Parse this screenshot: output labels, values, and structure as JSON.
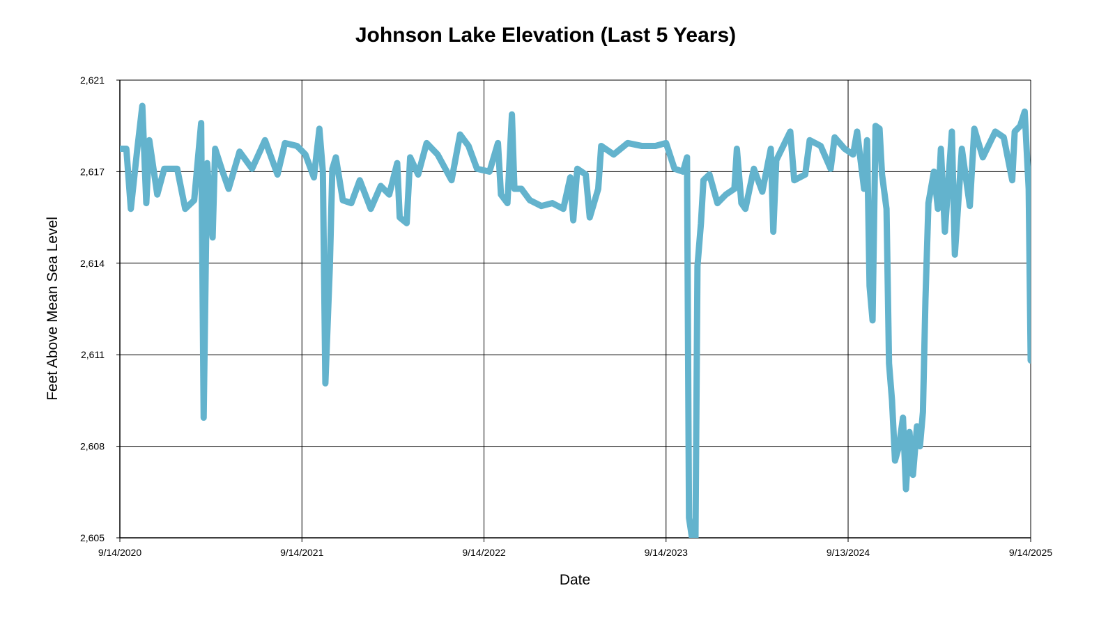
{
  "chart_data": {
    "type": "line",
    "title": "Johnson Lake Elevation (Last 5 Years)",
    "x_label": "Date",
    "y_label": "Feet Above Mean Sea Level",
    "grid": true,
    "xlim": [
      "2020-09-14",
      "2025-09-14"
    ],
    "xticks": [
      {
        "value": "2020-09-14",
        "label": "9/14/2020"
      },
      {
        "value": "2021-09-14",
        "label": "9/14/2021"
      },
      {
        "value": "2022-09-14",
        "label": "9/14/2022"
      },
      {
        "value": "2023-09-14",
        "label": "9/14/2023"
      },
      {
        "value": "2024-09-13",
        "label": "9/13/2024"
      },
      {
        "value": "2025-09-14",
        "label": "9/14/2025"
      }
    ],
    "ylim": [
      2604.6,
      2620.6
    ],
    "yticks": [
      {
        "value": 2604.6,
        "label": "2,605"
      },
      {
        "value": 2607.8,
        "label": "2,608"
      },
      {
        "value": 2611,
        "label": "2,611"
      },
      {
        "value": 2614.2,
        "label": "2,614"
      },
      {
        "value": 2617.4,
        "label": "2,617"
      },
      {
        "value": 2620.6,
        "label": "2,621"
      }
    ],
    "x": [
      "2020-09-14",
      "2020-09-27",
      "2020-10-06",
      "2020-10-19",
      "2020-10-29",
      "2020-11-06",
      "2020-11-12",
      "2020-11-28",
      "2020-12-12",
      "2021-01-07",
      "2021-01-23",
      "2021-02-10",
      "2021-02-24",
      "2021-03-01",
      "2021-03-08",
      "2021-03-19",
      "2021-03-24",
      "2021-04-06",
      "2021-04-20",
      "2021-05-12",
      "2021-06-06",
      "2021-07-02",
      "2021-07-27",
      "2021-08-11",
      "2021-09-04",
      "2021-09-21",
      "2021-10-08",
      "2021-10-19",
      "2021-10-26",
      "2021-10-31",
      "2021-11-09",
      "2021-11-14",
      "2021-11-21",
      "2021-12-05",
      "2021-12-22",
      "2022-01-08",
      "2022-01-30",
      "2022-02-19",
      "2022-03-08",
      "2022-03-24",
      "2022-03-29",
      "2022-04-12",
      "2022-04-19",
      "2022-05-05",
      "2022-05-22",
      "2022-06-13",
      "2022-07-11",
      "2022-07-28",
      "2022-08-14",
      "2022-08-31",
      "2022-09-25",
      "2022-10-12",
      "2022-10-18",
      "2022-10-31",
      "2022-11-09",
      "2022-11-14",
      "2022-11-28",
      "2022-12-15",
      "2023-01-07",
      "2023-01-29",
      "2023-02-20",
      "2023-03-06",
      "2023-03-12",
      "2023-03-20",
      "2023-04-06",
      "2023-04-14",
      "2023-05-01",
      "2023-05-07",
      "2023-06-01",
      "2023-06-29",
      "2023-07-27",
      "2023-08-24",
      "2023-09-14",
      "2023-10-01",
      "2023-10-18",
      "2023-10-26",
      "2023-10-30",
      "2023-11-05",
      "2023-11-12",
      "2023-11-16",
      "2023-11-23",
      "2023-11-28",
      "2023-12-10",
      "2023-12-26",
      "2024-01-12",
      "2024-01-29",
      "2024-02-03",
      "2024-02-12",
      "2024-02-20",
      "2024-03-08",
      "2024-03-25",
      "2024-04-11",
      "2024-04-16",
      "2024-04-22",
      "2024-05-20",
      "2024-05-28",
      "2024-06-19",
      "2024-06-28",
      "2024-07-20",
      "2024-08-09",
      "2024-08-17",
      "2024-09-06",
      "2024-09-23",
      "2024-10-01",
      "2024-10-15",
      "2024-10-21",
      "2024-10-26",
      "2024-11-01",
      "2024-11-07",
      "2024-11-15",
      "2024-11-20",
      "2024-11-29",
      "2024-12-04",
      "2024-12-10",
      "2024-12-16",
      "2024-12-24",
      "2025-01-01",
      "2025-01-07",
      "2025-01-14",
      "2025-01-21",
      "2025-01-29",
      "2025-02-04",
      "2025-02-10",
      "2025-02-15",
      "2025-02-21",
      "2025-03-04",
      "2025-03-12",
      "2025-03-18",
      "2025-03-26",
      "2025-04-09",
      "2025-04-15",
      "2025-04-29",
      "2025-05-15",
      "2025-05-24",
      "2025-06-10",
      "2025-07-05",
      "2025-07-22",
      "2025-08-08",
      "2025-08-13",
      "2025-08-24",
      "2025-09-02",
      "2025-09-10",
      "2025-09-14"
    ],
    "series": [
      {
        "name": "Elevation",
        "color": "#63b3cd",
        "values": [
          2618.2,
          2618.2,
          2616.1,
          2618.2,
          2619.7,
          2616.3,
          2618.5,
          2616.6,
          2617.5,
          2617.5,
          2616.1,
          2616.4,
          2619.1,
          2608.8,
          2617.7,
          2615.1,
          2618.2,
          2617.5,
          2616.8,
          2618.1,
          2617.5,
          2618.5,
          2617.3,
          2618.4,
          2618.3,
          2618.0,
          2617.2,
          2618.9,
          2617.4,
          2610.0,
          2614.1,
          2617.5,
          2617.9,
          2616.4,
          2616.3,
          2617.1,
          2616.1,
          2616.9,
          2616.6,
          2617.7,
          2615.8,
          2615.6,
          2617.9,
          2617.3,
          2618.4,
          2618.0,
          2617.1,
          2618.7,
          2618.3,
          2617.5,
          2617.4,
          2618.4,
          2616.6,
          2616.3,
          2619.4,
          2616.8,
          2616.8,
          2616.4,
          2616.2,
          2616.3,
          2616.1,
          2617.2,
          2615.7,
          2617.5,
          2617.3,
          2615.8,
          2616.8,
          2618.3,
          2618.0,
          2618.4,
          2618.3,
          2618.3,
          2618.4,
          2617.5,
          2617.4,
          2617.9,
          2605.3,
          2604.6,
          2604.6,
          2614.1,
          2615.6,
          2617.1,
          2617.3,
          2616.3,
          2616.6,
          2616.8,
          2618.2,
          2616.3,
          2616.1,
          2617.5,
          2616.7,
          2618.2,
          2615.3,
          2617.8,
          2618.8,
          2617.1,
          2617.3,
          2618.5,
          2618.3,
          2617.5,
          2618.6,
          2618.2,
          2618.0,
          2618.8,
          2616.8,
          2618.5,
          2613.4,
          2612.2,
          2619.0,
          2618.9,
          2617.3,
          2616.1,
          2610.7,
          2609.4,
          2607.3,
          2607.8,
          2608.8,
          2606.3,
          2608.3,
          2606.8,
          2608.5,
          2607.8,
          2609.0,
          2612.9,
          2616.3,
          2617.4,
          2616.1,
          2618.2,
          2615.3,
          2618.8,
          2614.5,
          2618.2,
          2616.2,
          2618.9,
          2617.9,
          2618.8,
          2618.6,
          2617.1,
          2618.8,
          2619.0,
          2619.5,
          2616.8,
          2610.8
        ]
      }
    ]
  }
}
